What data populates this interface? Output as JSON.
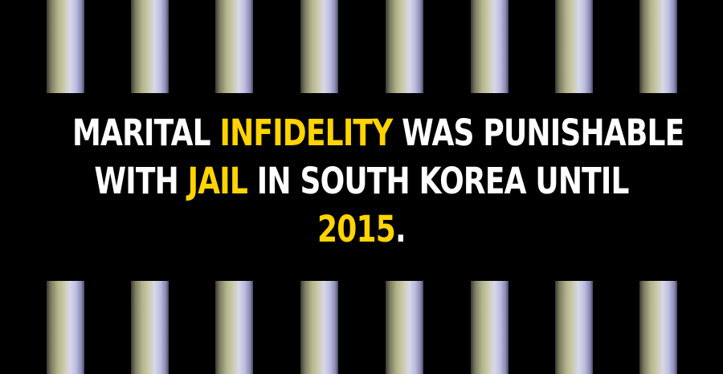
{
  "colors": {
    "background": "#000000",
    "text": "#ffffff",
    "highlight": "#ffd400"
  },
  "bars": {
    "top_count": 8,
    "bottom_count": 8
  },
  "caption": {
    "line1": {
      "a": "MARITAL ",
      "b": "INFIDELITY",
      "c": " WAS PUNISHABLE"
    },
    "line2": {
      "a": "WITH ",
      "b": "JAIL",
      "c": " IN SOUTH KOREA UNTIL"
    },
    "line3": {
      "a": "2015",
      "b": "."
    }
  }
}
